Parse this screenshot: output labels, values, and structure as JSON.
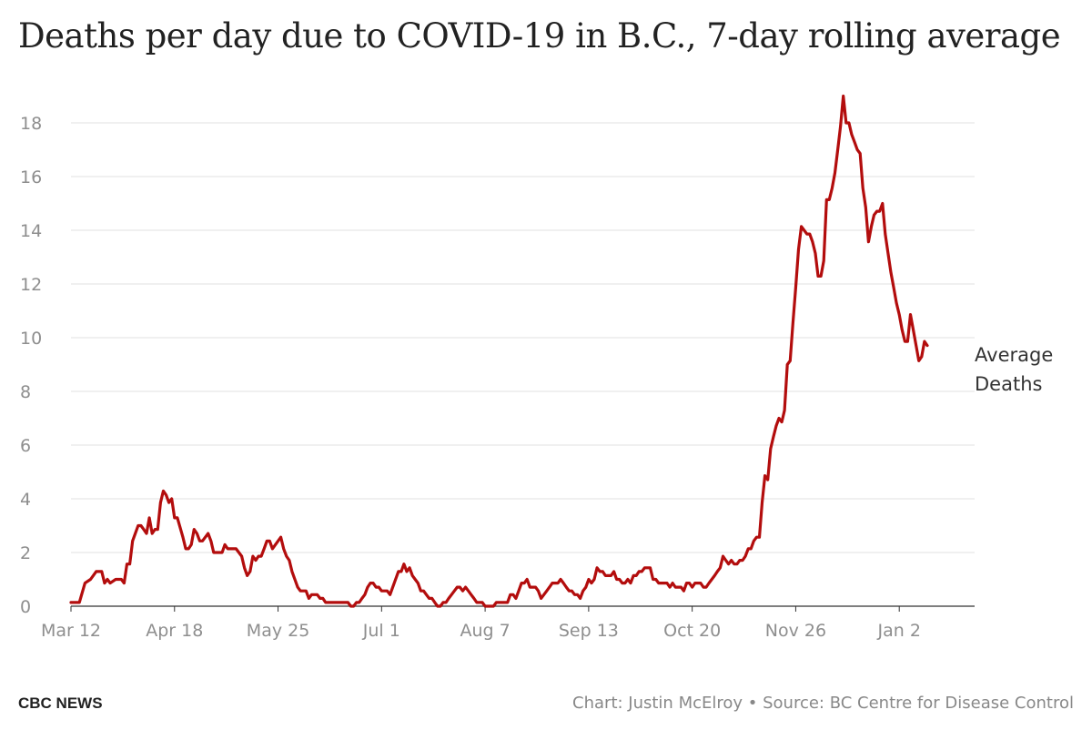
{
  "chart_data": {
    "type": "line",
    "title": "Deaths per day due to COVID-19 in B.C., 7-day rolling average",
    "xlabel": "",
    "ylabel": "",
    "ylim": [
      0,
      19
    ],
    "y_ticks": [
      0,
      2,
      4,
      6,
      8,
      10,
      12,
      14,
      16,
      18
    ],
    "x_tick_labels": [
      "Mar 12",
      "Apr 18",
      "May 25",
      "Jul 1",
      "Aug 7",
      "Sep 13",
      "Oct 20",
      "Nov 26",
      "Jan 2"
    ],
    "x_tick_days": [
      0,
      37,
      74,
      111,
      148,
      185,
      222,
      259,
      296
    ],
    "grid": true,
    "series": [
      {
        "name": "",
        "color": "#b30d0d",
        "points": [
          [
            0,
            0.14
          ],
          [
            3,
            0.14
          ],
          [
            5,
            0.86
          ],
          [
            7,
            1.0
          ],
          [
            9,
            1.29
          ],
          [
            11,
            1.29
          ],
          [
            12,
            0.86
          ],
          [
            13,
            1.0
          ],
          [
            14,
            0.86
          ],
          [
            16,
            1.0
          ],
          [
            18,
            1.0
          ],
          [
            19,
            0.86
          ],
          [
            20,
            1.57
          ],
          [
            21,
            1.57
          ],
          [
            22,
            2.43
          ],
          [
            24,
            3.0
          ],
          [
            25,
            3.0
          ],
          [
            26,
            2.86
          ],
          [
            27,
            2.71
          ],
          [
            28,
            3.29
          ],
          [
            29,
            2.71
          ],
          [
            30,
            2.86
          ],
          [
            31,
            2.86
          ],
          [
            32,
            3.86
          ],
          [
            33,
            4.29
          ],
          [
            34,
            4.14
          ],
          [
            35,
            3.86
          ],
          [
            36,
            4.0
          ],
          [
            37,
            3.29
          ],
          [
            38,
            3.29
          ],
          [
            40,
            2.57
          ],
          [
            41,
            2.14
          ],
          [
            42,
            2.14
          ],
          [
            43,
            2.29
          ],
          [
            44,
            2.86
          ],
          [
            45,
            2.71
          ],
          [
            46,
            2.43
          ],
          [
            47,
            2.43
          ],
          [
            48,
            2.57
          ],
          [
            49,
            2.71
          ],
          [
            50,
            2.43
          ],
          [
            51,
            2.0
          ],
          [
            53,
            2.0
          ],
          [
            54,
            2.0
          ],
          [
            55,
            2.29
          ],
          [
            56,
            2.14
          ],
          [
            58,
            2.14
          ],
          [
            59,
            2.14
          ],
          [
            61,
            1.86
          ],
          [
            62,
            1.43
          ],
          [
            63,
            1.14
          ],
          [
            64,
            1.29
          ],
          [
            65,
            1.86
          ],
          [
            66,
            1.71
          ],
          [
            67,
            1.86
          ],
          [
            68,
            1.86
          ],
          [
            69,
            2.14
          ],
          [
            70,
            2.43
          ],
          [
            71,
            2.43
          ],
          [
            72,
            2.14
          ],
          [
            74,
            2.43
          ],
          [
            75,
            2.57
          ],
          [
            76,
            2.14
          ],
          [
            77,
            1.86
          ],
          [
            78,
            1.71
          ],
          [
            79,
            1.29
          ],
          [
            80,
            1.0
          ],
          [
            81,
            0.71
          ],
          [
            82,
            0.57
          ],
          [
            83,
            0.57
          ],
          [
            84,
            0.57
          ],
          [
            85,
            0.29
          ],
          [
            86,
            0.43
          ],
          [
            87,
            0.43
          ],
          [
            88,
            0.43
          ],
          [
            89,
            0.29
          ],
          [
            90,
            0.29
          ],
          [
            91,
            0.14
          ],
          [
            95,
            0.14
          ],
          [
            99,
            0.14
          ],
          [
            100,
            0.0
          ],
          [
            101,
            0.0
          ],
          [
            102,
            0.14
          ],
          [
            103,
            0.14
          ],
          [
            104,
            0.29
          ],
          [
            105,
            0.43
          ],
          [
            106,
            0.71
          ],
          [
            107,
            0.86
          ],
          [
            108,
            0.86
          ],
          [
            109,
            0.71
          ],
          [
            110,
            0.71
          ],
          [
            111,
            0.57
          ],
          [
            112,
            0.57
          ],
          [
            113,
            0.57
          ],
          [
            114,
            0.43
          ],
          [
            115,
            0.71
          ],
          [
            116,
            1.0
          ],
          [
            117,
            1.29
          ],
          [
            118,
            1.29
          ],
          [
            119,
            1.57
          ],
          [
            120,
            1.29
          ],
          [
            121,
            1.43
          ],
          [
            122,
            1.14
          ],
          [
            123,
            1.0
          ],
          [
            124,
            0.86
          ],
          [
            125,
            0.57
          ],
          [
            126,
            0.57
          ],
          [
            127,
            0.43
          ],
          [
            128,
            0.29
          ],
          [
            129,
            0.29
          ],
          [
            130,
            0.14
          ],
          [
            131,
            0.0
          ],
          [
            132,
            0.0
          ],
          [
            133,
            0.14
          ],
          [
            134,
            0.14
          ],
          [
            135,
            0.29
          ],
          [
            136,
            0.43
          ],
          [
            137,
            0.57
          ],
          [
            138,
            0.71
          ],
          [
            139,
            0.71
          ],
          [
            140,
            0.57
          ],
          [
            141,
            0.71
          ],
          [
            142,
            0.57
          ],
          [
            143,
            0.43
          ],
          [
            144,
            0.29
          ],
          [
            145,
            0.14
          ],
          [
            146,
            0.14
          ],
          [
            147,
            0.14
          ],
          [
            148,
            0.0
          ],
          [
            149,
            0.0
          ],
          [
            151,
            0.0
          ],
          [
            152,
            0.14
          ],
          [
            153,
            0.14
          ],
          [
            155,
            0.14
          ],
          [
            156,
            0.14
          ],
          [
            157,
            0.43
          ],
          [
            158,
            0.43
          ],
          [
            159,
            0.29
          ],
          [
            160,
            0.57
          ],
          [
            161,
            0.86
          ],
          [
            162,
            0.86
          ],
          [
            163,
            1.0
          ],
          [
            164,
            0.71
          ],
          [
            165,
            0.71
          ],
          [
            166,
            0.71
          ],
          [
            167,
            0.57
          ],
          [
            168,
            0.29
          ],
          [
            169,
            0.43
          ],
          [
            170,
            0.57
          ],
          [
            171,
            0.71
          ],
          [
            172,
            0.86
          ],
          [
            173,
            0.86
          ],
          [
            174,
            0.86
          ],
          [
            175,
            1.0
          ],
          [
            176,
            0.86
          ],
          [
            177,
            0.71
          ],
          [
            178,
            0.57
          ],
          [
            179,
            0.57
          ],
          [
            180,
            0.43
          ],
          [
            181,
            0.43
          ],
          [
            182,
            0.29
          ],
          [
            183,
            0.57
          ],
          [
            184,
            0.71
          ],
          [
            185,
            1.0
          ],
          [
            186,
            0.86
          ],
          [
            187,
            1.0
          ],
          [
            188,
            1.43
          ],
          [
            189,
            1.29
          ],
          [
            190,
            1.29
          ],
          [
            191,
            1.14
          ],
          [
            192,
            1.14
          ],
          [
            193,
            1.14
          ],
          [
            194,
            1.29
          ],
          [
            195,
            1.0
          ],
          [
            196,
            1.0
          ],
          [
            197,
            0.86
          ],
          [
            198,
            0.86
          ],
          [
            199,
            1.0
          ],
          [
            200,
            0.86
          ],
          [
            201,
            1.14
          ],
          [
            202,
            1.14
          ],
          [
            203,
            1.29
          ],
          [
            204,
            1.29
          ],
          [
            205,
            1.43
          ],
          [
            206,
            1.43
          ],
          [
            207,
            1.43
          ],
          [
            208,
            1.0
          ],
          [
            209,
            1.0
          ],
          [
            210,
            0.86
          ],
          [
            211,
            0.86
          ],
          [
            212,
            0.86
          ],
          [
            213,
            0.86
          ],
          [
            214,
            0.71
          ],
          [
            215,
            0.86
          ],
          [
            216,
            0.71
          ],
          [
            217,
            0.71
          ],
          [
            218,
            0.71
          ],
          [
            219,
            0.57
          ],
          [
            220,
            0.86
          ],
          [
            221,
            0.86
          ],
          [
            222,
            0.71
          ],
          [
            223,
            0.86
          ],
          [
            224,
            0.86
          ],
          [
            225,
            0.86
          ],
          [
            226,
            0.71
          ],
          [
            227,
            0.71
          ],
          [
            228,
            0.86
          ],
          [
            229,
            1.0
          ],
          [
            230,
            1.14
          ],
          [
            231,
            1.29
          ],
          [
            232,
            1.43
          ],
          [
            233,
            1.86
          ],
          [
            234,
            1.71
          ],
          [
            235,
            1.57
          ],
          [
            236,
            1.71
          ],
          [
            237,
            1.57
          ],
          [
            238,
            1.57
          ],
          [
            239,
            1.71
          ],
          [
            240,
            1.71
          ],
          [
            241,
            1.86
          ],
          [
            242,
            2.14
          ],
          [
            243,
            2.14
          ],
          [
            244,
            2.43
          ],
          [
            245,
            2.57
          ],
          [
            246,
            2.57
          ],
          [
            247,
            3.86
          ],
          [
            248,
            4.86
          ],
          [
            249,
            4.71
          ],
          [
            250,
            5.86
          ],
          [
            251,
            6.29
          ],
          [
            252,
            6.71
          ],
          [
            253,
            7.0
          ],
          [
            254,
            6.86
          ],
          [
            255,
            7.29
          ],
          [
            256,
            9.0
          ],
          [
            257,
            9.14
          ],
          [
            258,
            10.57
          ],
          [
            259,
            11.86
          ],
          [
            260,
            13.29
          ],
          [
            261,
            14.14
          ],
          [
            262,
            14.0
          ],
          [
            263,
            13.86
          ],
          [
            264,
            13.86
          ],
          [
            265,
            13.57
          ],
          [
            266,
            13.14
          ],
          [
            267,
            12.29
          ],
          [
            268,
            12.29
          ],
          [
            269,
            12.86
          ],
          [
            270,
            15.14
          ],
          [
            271,
            15.14
          ],
          [
            272,
            15.57
          ],
          [
            273,
            16.14
          ],
          [
            274,
            17.0
          ],
          [
            275,
            17.86
          ],
          [
            276,
            19.0
          ],
          [
            277,
            18.0
          ],
          [
            278,
            18.0
          ],
          [
            279,
            17.57
          ],
          [
            280,
            17.29
          ],
          [
            281,
            17.0
          ],
          [
            282,
            16.86
          ],
          [
            283,
            15.57
          ],
          [
            284,
            14.86
          ],
          [
            285,
            13.57
          ],
          [
            286,
            14.14
          ],
          [
            287,
            14.57
          ],
          [
            288,
            14.71
          ],
          [
            289,
            14.71
          ],
          [
            290,
            15.0
          ],
          [
            291,
            13.86
          ],
          [
            292,
            13.14
          ],
          [
            293,
            12.43
          ],
          [
            294,
            11.86
          ],
          [
            295,
            11.29
          ],
          [
            296,
            10.86
          ],
          [
            297,
            10.29
          ],
          [
            298,
            9.86
          ],
          [
            299,
            9.86
          ],
          [
            300,
            10.86
          ],
          [
            301,
            10.29
          ],
          [
            302,
            9.71
          ],
          [
            303,
            9.14
          ],
          [
            304,
            9.29
          ],
          [
            305,
            9.86
          ],
          [
            306,
            9.71
          ]
        ]
      }
    ],
    "annotation": {
      "line1": "Average",
      "line2": "Deaths"
    }
  },
  "footer": {
    "brand": "CBC NEWS",
    "credit": "Chart: Justin McElroy • Source: BC Centre for Disease Control"
  }
}
